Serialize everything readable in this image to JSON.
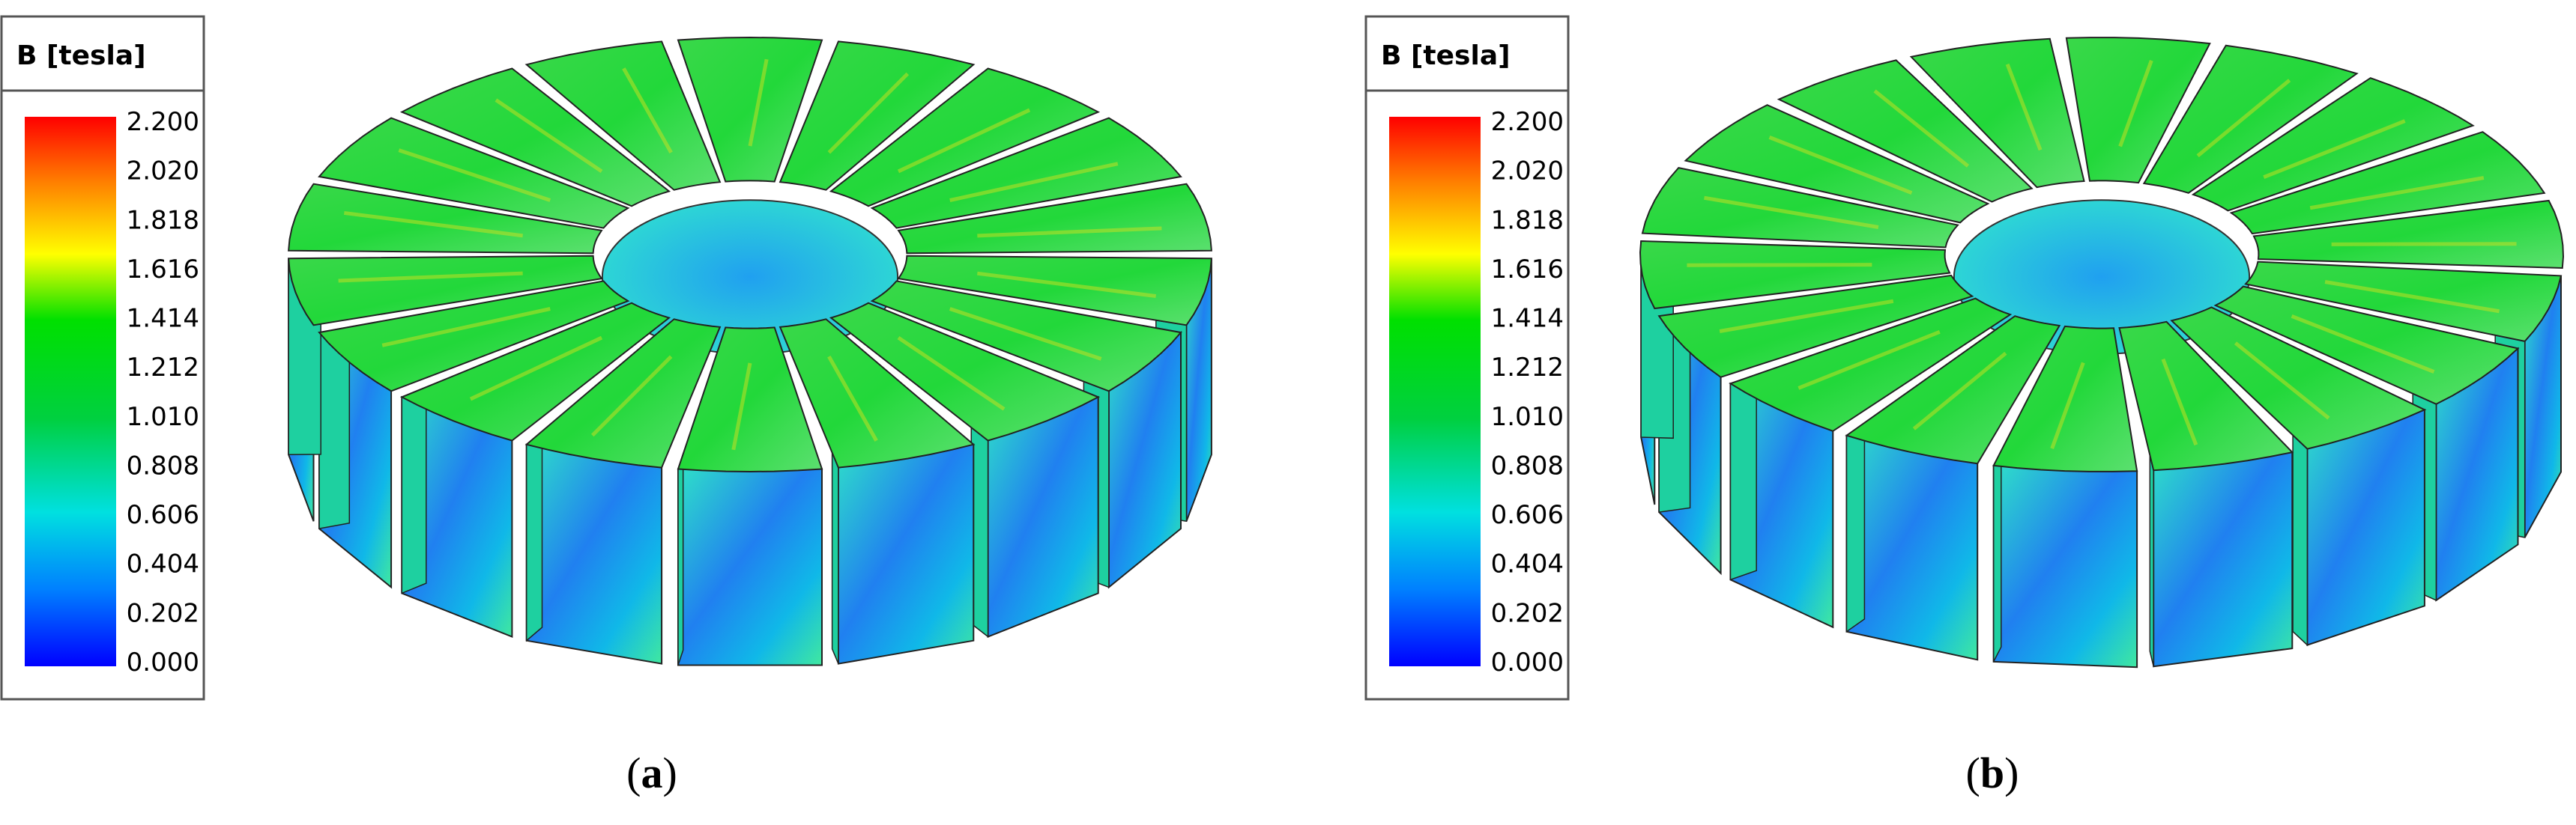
{
  "panels": [
    {
      "legend_title": "B [tesla]",
      "scale_labels": [
        "2.200",
        "2.020",
        "1.818",
        "1.616",
        "1.414",
        "1.212",
        "1.010",
        "0.808",
        "0.606",
        "0.404",
        "0.202",
        "0.000"
      ],
      "caption": [
        "(",
        "a",
        ")"
      ]
    },
    {
      "legend_title": "B [tesla]",
      "scale_labels": [
        "2.200",
        "2.020",
        "1.818",
        "1.616",
        "1.414",
        "1.212",
        "1.010",
        "0.808",
        "0.606",
        "0.404",
        "0.202",
        "0.000"
      ],
      "caption": [
        "(",
        "b",
        ")"
      ]
    }
  ]
}
